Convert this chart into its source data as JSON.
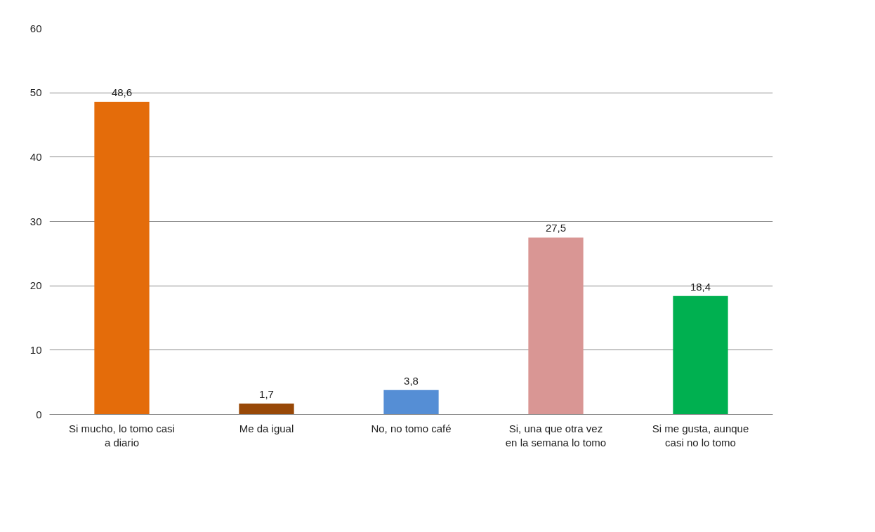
{
  "chart_data": {
    "type": "bar",
    "categories": [
      "Si mucho, lo tomo casi a diario",
      "Me da igual",
      "No, no tomo café",
      "Si, una que otra vez en la semana lo tomo",
      "Si me gusta, aunque casi no lo tomo"
    ],
    "values": [
      48.6,
      1.7,
      3.8,
      27.5,
      18.4
    ],
    "colors": [
      "#e46c0a",
      "#984807",
      "#558ed5",
      "#d99694",
      "#00b050"
    ],
    "value_labels": [
      "48,6",
      "1,7",
      "3,8",
      "27,5",
      "18,4"
    ],
    "ylim": [
      0,
      60
    ],
    "yticks": [
      0,
      10,
      20,
      30,
      40,
      50,
      60
    ],
    "grid": "y"
  }
}
